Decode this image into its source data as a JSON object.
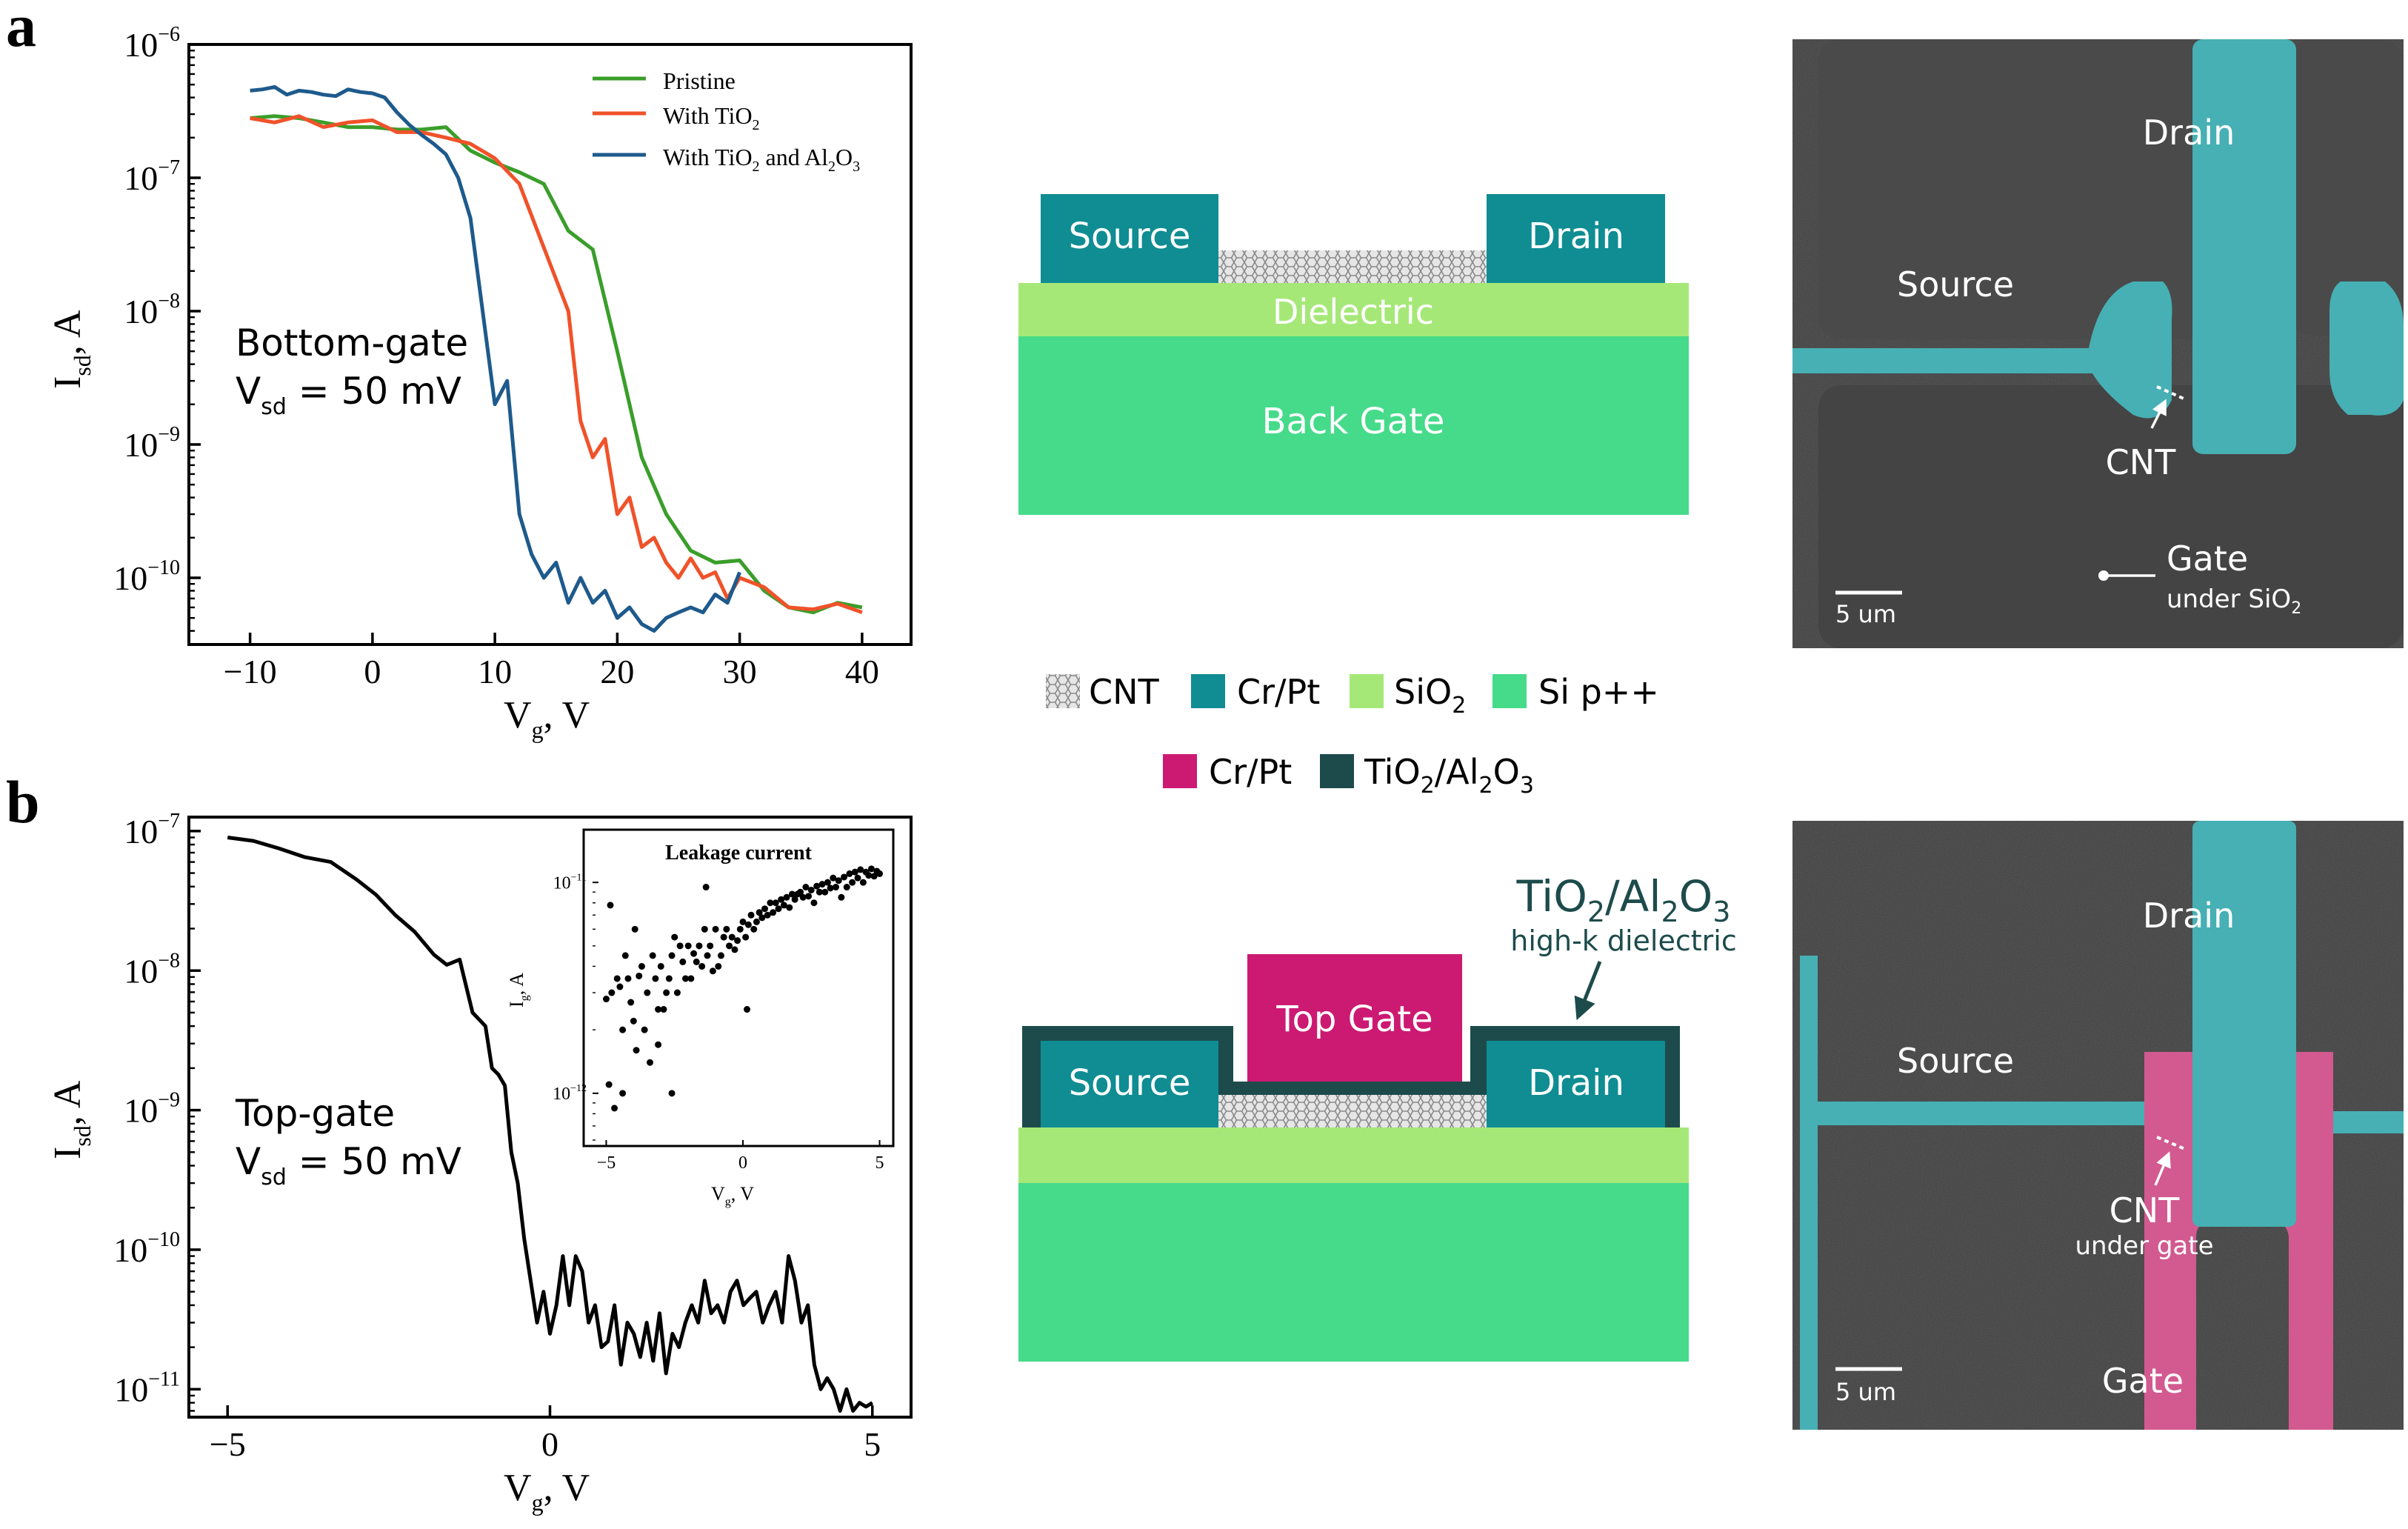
{
  "panel_labels": {
    "a": "a",
    "b": "b"
  },
  "colors": {
    "pristine": "#3a9e2a",
    "tio2": "#f0522a",
    "tio2_al2o3": "#1e5a8c",
    "black": "#000000",
    "crpt_teal": "#0f8d93",
    "sio2": "#a6e878",
    "si": "#45db8a",
    "crpt_magenta": "#cc1a73",
    "tio2_al2o3_layer": "#1d4b4b",
    "cnt": "#c8c8c8",
    "sem_bg": "#3f3f3f",
    "sem_teal": "#46b0b4",
    "sem_pink": "#d25a90"
  },
  "chart_data": [
    {
      "type": "line",
      "panel": "a",
      "xlabel_main": "V",
      "xlabel_sub": "g",
      "xlabel_rest": ", V",
      "ylabel_main": "I",
      "ylabel_sub": "sd",
      "ylabel_rest": ", A",
      "yscale": "log",
      "xlim": [
        -15,
        44
      ],
      "ylim_exp": [
        -10.5,
        -6
      ],
      "xticks": [
        -10,
        0,
        10,
        20,
        30,
        40
      ],
      "xtick_labels": [
        "−10",
        "0",
        "10",
        "20",
        "30",
        "40"
      ],
      "yticks_exp": [
        -10,
        -9,
        -8,
        -7,
        -6
      ],
      "ytick_base": "10",
      "ytick_exps": [
        "−10",
        "−9",
        "−8",
        "−7",
        "−6"
      ],
      "annotation_line1": "Bottom-gate",
      "annotation_line2_main": "V",
      "annotation_line2_sub": "sd",
      "annotation_line2_rest": " = 50 mV",
      "legend": [
        {
          "label": "Pristine",
          "sub_parts": []
        },
        {
          "label": "With TiO",
          "sub_parts": [
            "2"
          ]
        },
        {
          "label": "With TiO",
          "sub_parts": [
            "2"
          ],
          "suffix": " and Al",
          "suffix_sub": "2",
          "suffix2": "O",
          "suffix2_sub": "3"
        }
      ],
      "series": [
        {
          "name": "Pristine",
          "x": [
            -10,
            -8,
            -6,
            -4,
            -2,
            0,
            2,
            4,
            6,
            8,
            10,
            12,
            14,
            16,
            18,
            20,
            22,
            24,
            26,
            28,
            30,
            32,
            34,
            36,
            38,
            40
          ],
          "y": [
            2.8e-07,
            2.9e-07,
            2.8e-07,
            2.6e-07,
            2.4e-07,
            2.4e-07,
            2.3e-07,
            2.3e-07,
            2.4e-07,
            1.6e-07,
            1.3e-07,
            1.1e-07,
            9e-08,
            4e-08,
            2.9e-08,
            5e-09,
            8e-10,
            3e-10,
            1.6e-10,
            1.3e-10,
            1.35e-10,
            8e-11,
            6e-11,
            5.5e-11,
            6.5e-11,
            6e-11
          ]
        },
        {
          "name": "With TiO2",
          "x": [
            -10,
            -8,
            -6,
            -4,
            -2,
            0,
            2,
            4,
            6,
            8,
            10,
            12,
            14,
            16,
            17,
            18,
            19,
            20,
            21,
            22,
            23,
            24,
            25,
            26,
            27,
            28,
            29,
            30,
            32,
            34,
            36,
            38,
            40
          ],
          "y": [
            2.8e-07,
            2.6e-07,
            2.9e-07,
            2.4e-07,
            2.6e-07,
            2.7e-07,
            2.2e-07,
            2.2e-07,
            2e-07,
            1.8e-07,
            1.4e-07,
            9e-08,
            3e-08,
            1e-08,
            1.5e-09,
            8e-10,
            1.1e-09,
            3e-10,
            4e-10,
            1.7e-10,
            2e-10,
            1.3e-10,
            1e-10,
            1.4e-10,
            1e-10,
            1.1e-10,
            7e-11,
            1e-10,
            8.5e-11,
            6e-11,
            5.8e-11,
            6.4e-11,
            5.5e-11
          ]
        },
        {
          "name": "With TiO2 and Al2O3",
          "x": [
            -10,
            -9,
            -8,
            -7,
            -6,
            -5,
            -4,
            -3,
            -2,
            -1,
            0,
            1,
            2,
            3,
            4,
            5,
            6,
            7,
            8,
            9,
            10,
            11,
            12,
            13,
            14,
            15,
            16,
            17,
            18,
            19,
            20,
            21,
            22,
            23,
            24,
            25,
            26,
            27,
            28,
            29,
            30
          ],
          "y": [
            4.5e-07,
            4.6e-07,
            4.8e-07,
            4.2e-07,
            4.5e-07,
            4.4e-07,
            4.2e-07,
            4.1e-07,
            4.6e-07,
            4.4e-07,
            4.3e-07,
            4e-07,
            3.1e-07,
            2.5e-07,
            2.1e-07,
            1.8e-07,
            1.5e-07,
            1e-07,
            5e-08,
            1e-08,
            2e-09,
            3e-09,
            3e-10,
            1.5e-10,
            1e-10,
            1.3e-10,
            6.5e-11,
            1e-10,
            6.5e-11,
            8e-11,
            5e-11,
            6e-11,
            4.5e-11,
            4e-11,
            5e-11,
            5.5e-11,
            6e-11,
            5.5e-11,
            7.5e-11,
            6.5e-11,
            1.1e-10
          ]
        }
      ]
    },
    {
      "type": "line",
      "panel": "b",
      "xlabel_main": "V",
      "xlabel_sub": "g",
      "xlabel_rest": ", V",
      "ylabel_main": "I",
      "ylabel_sub": "sd",
      "ylabel_rest": ", A",
      "yscale": "log",
      "xlim": [
        -5.6,
        5.6
      ],
      "ylim_exp": [
        -11.2,
        -6.9
      ],
      "xticks": [
        -5,
        0,
        5
      ],
      "xtick_labels": [
        "−5",
        "0",
        "5"
      ],
      "yticks_exp": [
        -11,
        -10,
        -9,
        -8,
        -7
      ],
      "ytick_base": "10",
      "ytick_exps": [
        "−11",
        "−10",
        "−9",
        "−8",
        "−7"
      ],
      "annotation_line1": "Top-gate",
      "annotation_line2_main": "V",
      "annotation_line2_sub": "sd",
      "annotation_line2_rest": " = 50 mV",
      "series": [
        {
          "name": "Top-gate",
          "x": [
            -5,
            -4.6,
            -4.2,
            -3.8,
            -3.4,
            -3.0,
            -2.7,
            -2.4,
            -2.1,
            -1.8,
            -1.6,
            -1.4,
            -1.2,
            -1.0,
            -0.9,
            -0.8,
            -0.7,
            -0.6,
            -0.5,
            -0.4,
            -0.3,
            -0.2,
            -0.1,
            0.0,
            0.1,
            0.2,
            0.3,
            0.4,
            0.5,
            0.6,
            0.7,
            0.8,
            0.9,
            1.0,
            1.1,
            1.2,
            1.3,
            1.4,
            1.5,
            1.6,
            1.7,
            1.8,
            1.9,
            2.0,
            2.1,
            2.2,
            2.3,
            2.4,
            2.5,
            2.6,
            2.7,
            2.8,
            2.9,
            3.0,
            3.1,
            3.2,
            3.3,
            3.4,
            3.5,
            3.6,
            3.7,
            3.8,
            3.9,
            4.0,
            4.1,
            4.2,
            4.3,
            4.4,
            4.5,
            4.6,
            4.7,
            4.8,
            4.9,
            5.0
          ],
          "y": [
            9e-08,
            8.5e-08,
            7.5e-08,
            6.5e-08,
            6e-08,
            4.5e-08,
            3.5e-08,
            2.5e-08,
            1.9e-08,
            1.3e-08,
            1.1e-08,
            1.2e-08,
            5e-09,
            4e-09,
            2e-09,
            1.8e-09,
            1.5e-09,
            5e-10,
            3e-10,
            1.2e-10,
            6e-11,
            3e-11,
            5e-11,
            2.5e-11,
            4e-11,
            9e-11,
            4e-11,
            9e-11,
            7e-11,
            3e-11,
            4e-11,
            2e-11,
            2.2e-11,
            4e-11,
            1.5e-11,
            3e-11,
            2.5e-11,
            1.7e-11,
            3e-11,
            1.6e-11,
            3.5e-11,
            1.3e-11,
            2.5e-11,
            2e-11,
            3e-11,
            4e-11,
            3e-11,
            6e-11,
            3.5e-11,
            4e-11,
            3e-11,
            5e-11,
            6e-11,
            4e-11,
            4.5e-11,
            5e-11,
            3e-11,
            4e-11,
            5e-11,
            3e-11,
            9e-11,
            6e-11,
            3e-11,
            4e-11,
            1.5e-11,
            1e-11,
            1.2e-11,
            1e-11,
            7e-12,
            1e-11,
            7e-12,
            8e-12,
            7.5e-12,
            8e-12
          ]
        }
      ]
    },
    {
      "type": "scatter",
      "panel": "b-inset",
      "title": "Leakage current",
      "xlabel_main": "V",
      "xlabel_sub": "g",
      "xlabel_rest": ", V",
      "ylabel_main": "I",
      "ylabel_sub": "g",
      "ylabel_rest": ", A",
      "yscale": "log",
      "xlim": [
        -5.5,
        5.5
      ],
      "ylim_exp": [
        -12.25,
        -10.75
      ],
      "xticks": [
        -5,
        0,
        5
      ],
      "xtick_labels": [
        "−5",
        "0",
        "5"
      ],
      "yticks_exp": [
        -12,
        -11
      ],
      "ytick_base": "10",
      "ytick_exps": [
        "−12",
        "−11"
      ],
      "series": [
        {
          "name": "Leakage",
          "x": [
            -5,
            -4.9,
            -4.8,
            -4.7,
            -4.6,
            -4.5,
            -4.4,
            -4.3,
            -4.2,
            -4.1,
            -4.0,
            -3.9,
            -3.8,
            -3.7,
            -3.6,
            -3.5,
            -3.4,
            -3.3,
            -3.2,
            -3.1,
            -3.0,
            -2.9,
            -2.8,
            -2.7,
            -2.6,
            -2.5,
            -2.4,
            -2.3,
            -2.2,
            -2.1,
            -2.0,
            -1.9,
            -1.8,
            -1.7,
            -1.6,
            -1.5,
            -1.4,
            -1.3,
            -1.2,
            -1.1,
            -1.0,
            -0.9,
            -0.8,
            -0.7,
            -0.6,
            -0.5,
            -0.4,
            -0.3,
            -0.2,
            -0.1,
            0.0,
            0.1,
            0.2,
            0.3,
            0.4,
            0.5,
            0.6,
            0.7,
            0.8,
            0.9,
            1.0,
            1.1,
            1.2,
            1.3,
            1.4,
            1.5,
            1.6,
            1.7,
            1.8,
            1.9,
            2.0,
            2.1,
            2.2,
            2.3,
            2.4,
            2.5,
            2.6,
            2.7,
            2.8,
            2.9,
            3.0,
            3.1,
            3.2,
            3.3,
            3.4,
            3.5,
            3.6,
            3.7,
            3.8,
            3.9,
            4.0,
            4.1,
            4.2,
            4.3,
            4.4,
            4.5,
            4.6,
            4.7,
            4.8,
            4.9,
            5.0,
            -4.85,
            -4.4,
            -3.95,
            -3.1,
            -2.6,
            -1.35,
            0.15
          ],
          "y": [
            2.8e-12,
            1.1e-12,
            3e-12,
            8.5e-13,
            3.5e-12,
            3.2e-12,
            2e-12,
            4.5e-12,
            3.5e-12,
            2.7e-12,
            2.2e-12,
            1.6e-12,
            3.6e-12,
            4e-12,
            2e-12,
            3e-12,
            1.4e-12,
            4.5e-12,
            3.5e-12,
            2.5e-12,
            4e-12,
            2.5e-12,
            3e-12,
            3.5e-12,
            4.5e-12,
            5.5e-12,
            3e-12,
            5e-12,
            4.2e-12,
            3.5e-12,
            5e-12,
            3.5e-12,
            4.6e-12,
            4.2e-12,
            5e-12,
            4e-12,
            6e-12,
            4.5e-12,
            5e-12,
            3.8e-12,
            6e-12,
            4e-12,
            4.5e-12,
            5.5e-12,
            6e-12,
            5e-12,
            5.5e-12,
            4.8e-12,
            5.3e-12,
            6e-12,
            6.5e-12,
            5.5e-12,
            6.3e-12,
            7e-12,
            6e-12,
            6.5e-12,
            7.2e-12,
            6.8e-12,
            7.5e-12,
            7e-12,
            8e-12,
            7.2e-12,
            8e-12,
            7.5e-12,
            8.3e-12,
            7.8e-12,
            8.5e-12,
            7.6e-12,
            8.8e-12,
            8.3e-12,
            8.8e-12,
            9e-12,
            8.5e-12,
            9.5e-12,
            8.6e-12,
            9.2e-12,
            8e-12,
            9.6e-12,
            9e-12,
            9.8e-12,
            9e-12,
            1e-11,
            9.4e-12,
            1.05e-11,
            9.5e-12,
            1.02e-11,
            8.5e-12,
            1.06e-11,
            9.5e-12,
            1.1e-11,
            1e-11,
            1.12e-11,
            1.05e-11,
            1.15e-11,
            1e-11,
            1.12e-11,
            1.08e-11,
            1.16e-11,
            1.07e-11,
            1.13e-11,
            1.1e-11,
            7.8e-12,
            1e-12,
            6e-12,
            1.7e-12,
            1e-12,
            9.5e-12,
            2.5e-12
          ]
        }
      ]
    }
  ],
  "diagram_a": {
    "source_label": "Source",
    "drain_label": "Drain",
    "dielectric_label": "Dielectric",
    "back_gate_label": "Back Gate"
  },
  "diagram_b": {
    "source_label": "Source",
    "drain_label": "Drain",
    "top_gate_label": "Top Gate",
    "dielectric_title_main": "TiO",
    "dielectric_title_sub1": "2",
    "dielectric_title_mid": "/Al",
    "dielectric_title_sub2": "2",
    "dielectric_title_end": "O",
    "dielectric_title_sub3": "3",
    "dielectric_subtitle": "high-k dielectric"
  },
  "legend_materials": {
    "row1": [
      {
        "key": "cnt",
        "label": "CNT"
      },
      {
        "key": "crpt_teal",
        "label": "Cr/Pt"
      },
      {
        "key": "sio2",
        "label": "SiO",
        "sub": "2"
      },
      {
        "key": "si",
        "label": "Si p++"
      }
    ],
    "row2": [
      {
        "key": "crpt_magenta",
        "label": "Cr/Pt"
      },
      {
        "key": "tio2_al2o3_layer",
        "label": "TiO",
        "sub": "2",
        "mid": "/Al",
        "sub2": "2",
        "end": "O",
        "sub3": "3"
      }
    ]
  },
  "sem_a": {
    "drain_label": "Drain",
    "source_label": "Source",
    "cnt_label": "CNT",
    "gate_label": "Gate",
    "gate_sub_label": "under SiO",
    "gate_sub_sub": "2",
    "scale_label": "5 um"
  },
  "sem_b": {
    "drain_label": "Drain",
    "source_label": "Source",
    "cnt_label": "CNT",
    "cnt_sub_label": "under gate",
    "gate_label": "Gate",
    "scale_label": "5 um"
  }
}
